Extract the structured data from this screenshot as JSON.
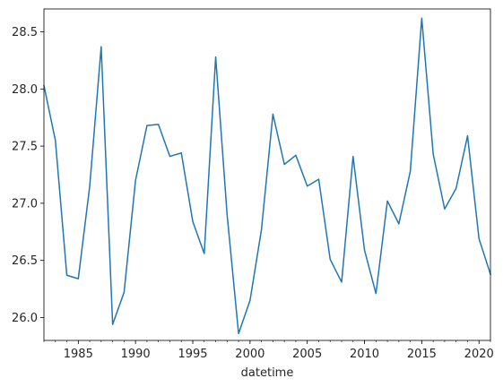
{
  "chart_data": {
    "type": "line",
    "xlabel": "datetime",
    "ylabel": "",
    "title": "",
    "xlim": [
      1982,
      2021
    ],
    "ylim": [
      25.8,
      28.7
    ],
    "x_ticks": [
      1985,
      1990,
      1995,
      2000,
      2005,
      2010,
      2015,
      2020
    ],
    "x_tick_labels": [
      "1985",
      "1990",
      "1995",
      "2000",
      "2005",
      "2010",
      "2015",
      "2020"
    ],
    "y_ticks": [
      26.0,
      26.5,
      27.0,
      27.5,
      28.0,
      28.5
    ],
    "y_tick_labels": [
      "26.0",
      "26.5",
      "27.0",
      "27.5",
      "28.0",
      "28.5"
    ],
    "grid": false,
    "legend": "none",
    "series": [
      {
        "color": "#1f77b4",
        "x": [
          1982,
          1983,
          1984,
          1985,
          1986,
          1987,
          1988,
          1989,
          1990,
          1991,
          1992,
          1993,
          1994,
          1995,
          1996,
          1997,
          1998,
          1999,
          2000,
          2001,
          2002,
          2003,
          2004,
          2005,
          2006,
          2007,
          2008,
          2009,
          2010,
          2011,
          2012,
          2013,
          2014,
          2015,
          2016,
          2017,
          2018,
          2019,
          2020,
          2021
        ],
        "values": [
          28.03,
          27.55,
          26.37,
          26.34,
          27.15,
          28.37,
          25.94,
          26.22,
          27.2,
          27.68,
          27.69,
          27.41,
          27.44,
          26.84,
          26.56,
          28.28,
          26.9,
          25.86,
          26.15,
          26.77,
          27.78,
          27.34,
          27.42,
          27.15,
          27.21,
          26.51,
          26.31,
          27.41,
          26.59,
          26.21,
          27.02,
          26.82,
          27.28,
          28.62,
          27.43,
          26.95,
          27.13,
          27.59,
          26.69,
          26.38
        ]
      }
    ]
  }
}
